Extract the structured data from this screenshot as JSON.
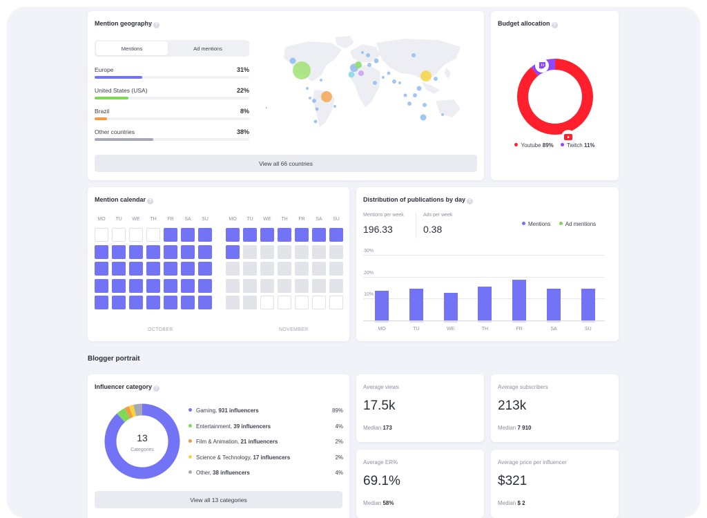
{
  "geography": {
    "title": "Mention geography",
    "help": "?",
    "tabs": [
      "Mentions",
      "Ad mentions"
    ],
    "rows": [
      {
        "name": "Europe",
        "pct": "31%",
        "value": 0.31,
        "color": "#7274f5"
      },
      {
        "name": "United States (USA)",
        "pct": "22%",
        "value": 0.22,
        "color": "#7ed957"
      },
      {
        "name": "Brazil",
        "pct": "8%",
        "value": 0.08,
        "color": "#f39a43"
      },
      {
        "name": "Other countries",
        "pct": "38%",
        "value": 0.38,
        "color": "#a7aab6"
      }
    ],
    "view_all": "View all 66 countries"
  },
  "budget": {
    "title": "Budget allocation",
    "help": "?",
    "items": [
      {
        "name": "Youtube",
        "pct": "89%",
        "value": 89,
        "color": "#ff1f2d",
        "icon": "youtube-icon"
      },
      {
        "name": "Twitch",
        "pct": "11%",
        "value": 11,
        "color": "#9146ff",
        "icon": "twitch-icon"
      }
    ]
  },
  "calendar": {
    "title": "Mention calendar",
    "help": "?",
    "days": [
      "MO",
      "TU",
      "WE",
      "TH",
      "FR",
      "SA",
      "SU"
    ],
    "months": [
      {
        "name": "OCTOBER",
        "grid": [
          "eeeeooo",
          "ooooooo",
          "ooooooo",
          "ooooooo",
          "ooooooo"
        ]
      },
      {
        "name": "NOVEMBER",
        "grid": [
          "ooooooo",
          "oxxxxxx",
          "xxxxxxx",
          "xxxxxxx",
          "xxeeeee"
        ]
      }
    ]
  },
  "distribution": {
    "title": "Distribution of publications by day",
    "help": "?",
    "mentions_label": "Mentions per week",
    "mentions_value": "196.33",
    "ads_label": "Ads per week",
    "ads_value": "0.38",
    "legend": [
      {
        "name": "Mentions",
        "color": "#7274f5"
      },
      {
        "name": "Ad mentions",
        "color": "#7ed957"
      }
    ],
    "y_ticks": [
      "30%",
      "20%",
      "10%"
    ],
    "chart_data": {
      "type": "bar",
      "categories": [
        "MO",
        "TU",
        "WE",
        "TH",
        "FR",
        "SA",
        "SU"
      ],
      "series": [
        {
          "name": "Mentions",
          "values": [
            13.5,
            14.5,
            12.5,
            15.5,
            18.5,
            14.5,
            14.5
          ]
        }
      ],
      "ylim": [
        0,
        30
      ],
      "grid": true,
      "legend": "top-right"
    }
  },
  "section_title": "Blogger portrait",
  "influencer": {
    "title": "Influencer category",
    "help": "?",
    "center_value": "13",
    "center_label": "Categories",
    "categories": [
      {
        "name": "Gaming,",
        "count": "931 influencers",
        "pct": "89%",
        "value": 89,
        "color": "#7274f5"
      },
      {
        "name": "Entertainment,",
        "count": "39 influencers",
        "pct": "4%",
        "value": 4,
        "color": "#7ed957"
      },
      {
        "name": "Film & Animation,",
        "count": "21 influencers",
        "pct": "2%",
        "value": 2,
        "color": "#f39a43"
      },
      {
        "name": "Science & Technology,",
        "count": "17 influencers",
        "pct": "2%",
        "value": 2,
        "color": "#f7d43b"
      },
      {
        "name": "Other,",
        "count": "38 influencers",
        "pct": "4%",
        "value": 4,
        "color": "#a7aab6"
      }
    ],
    "view_all": "View all 13 categories"
  },
  "stats": {
    "avg_views": {
      "label": "Average views",
      "value": "17.5k",
      "median_label": "Median",
      "median": "173"
    },
    "avg_subs": {
      "label": "Average subscribers",
      "value": "213k",
      "median_label": "Median",
      "median": "7 910"
    },
    "avg_er": {
      "label": "Average ER%",
      "value": "69.1%",
      "median_label": "Median",
      "median": "58%"
    },
    "avg_price": {
      "label": "Average price per influencer",
      "value": "$321",
      "median_label": "Median",
      "median": "$ 2"
    }
  }
}
